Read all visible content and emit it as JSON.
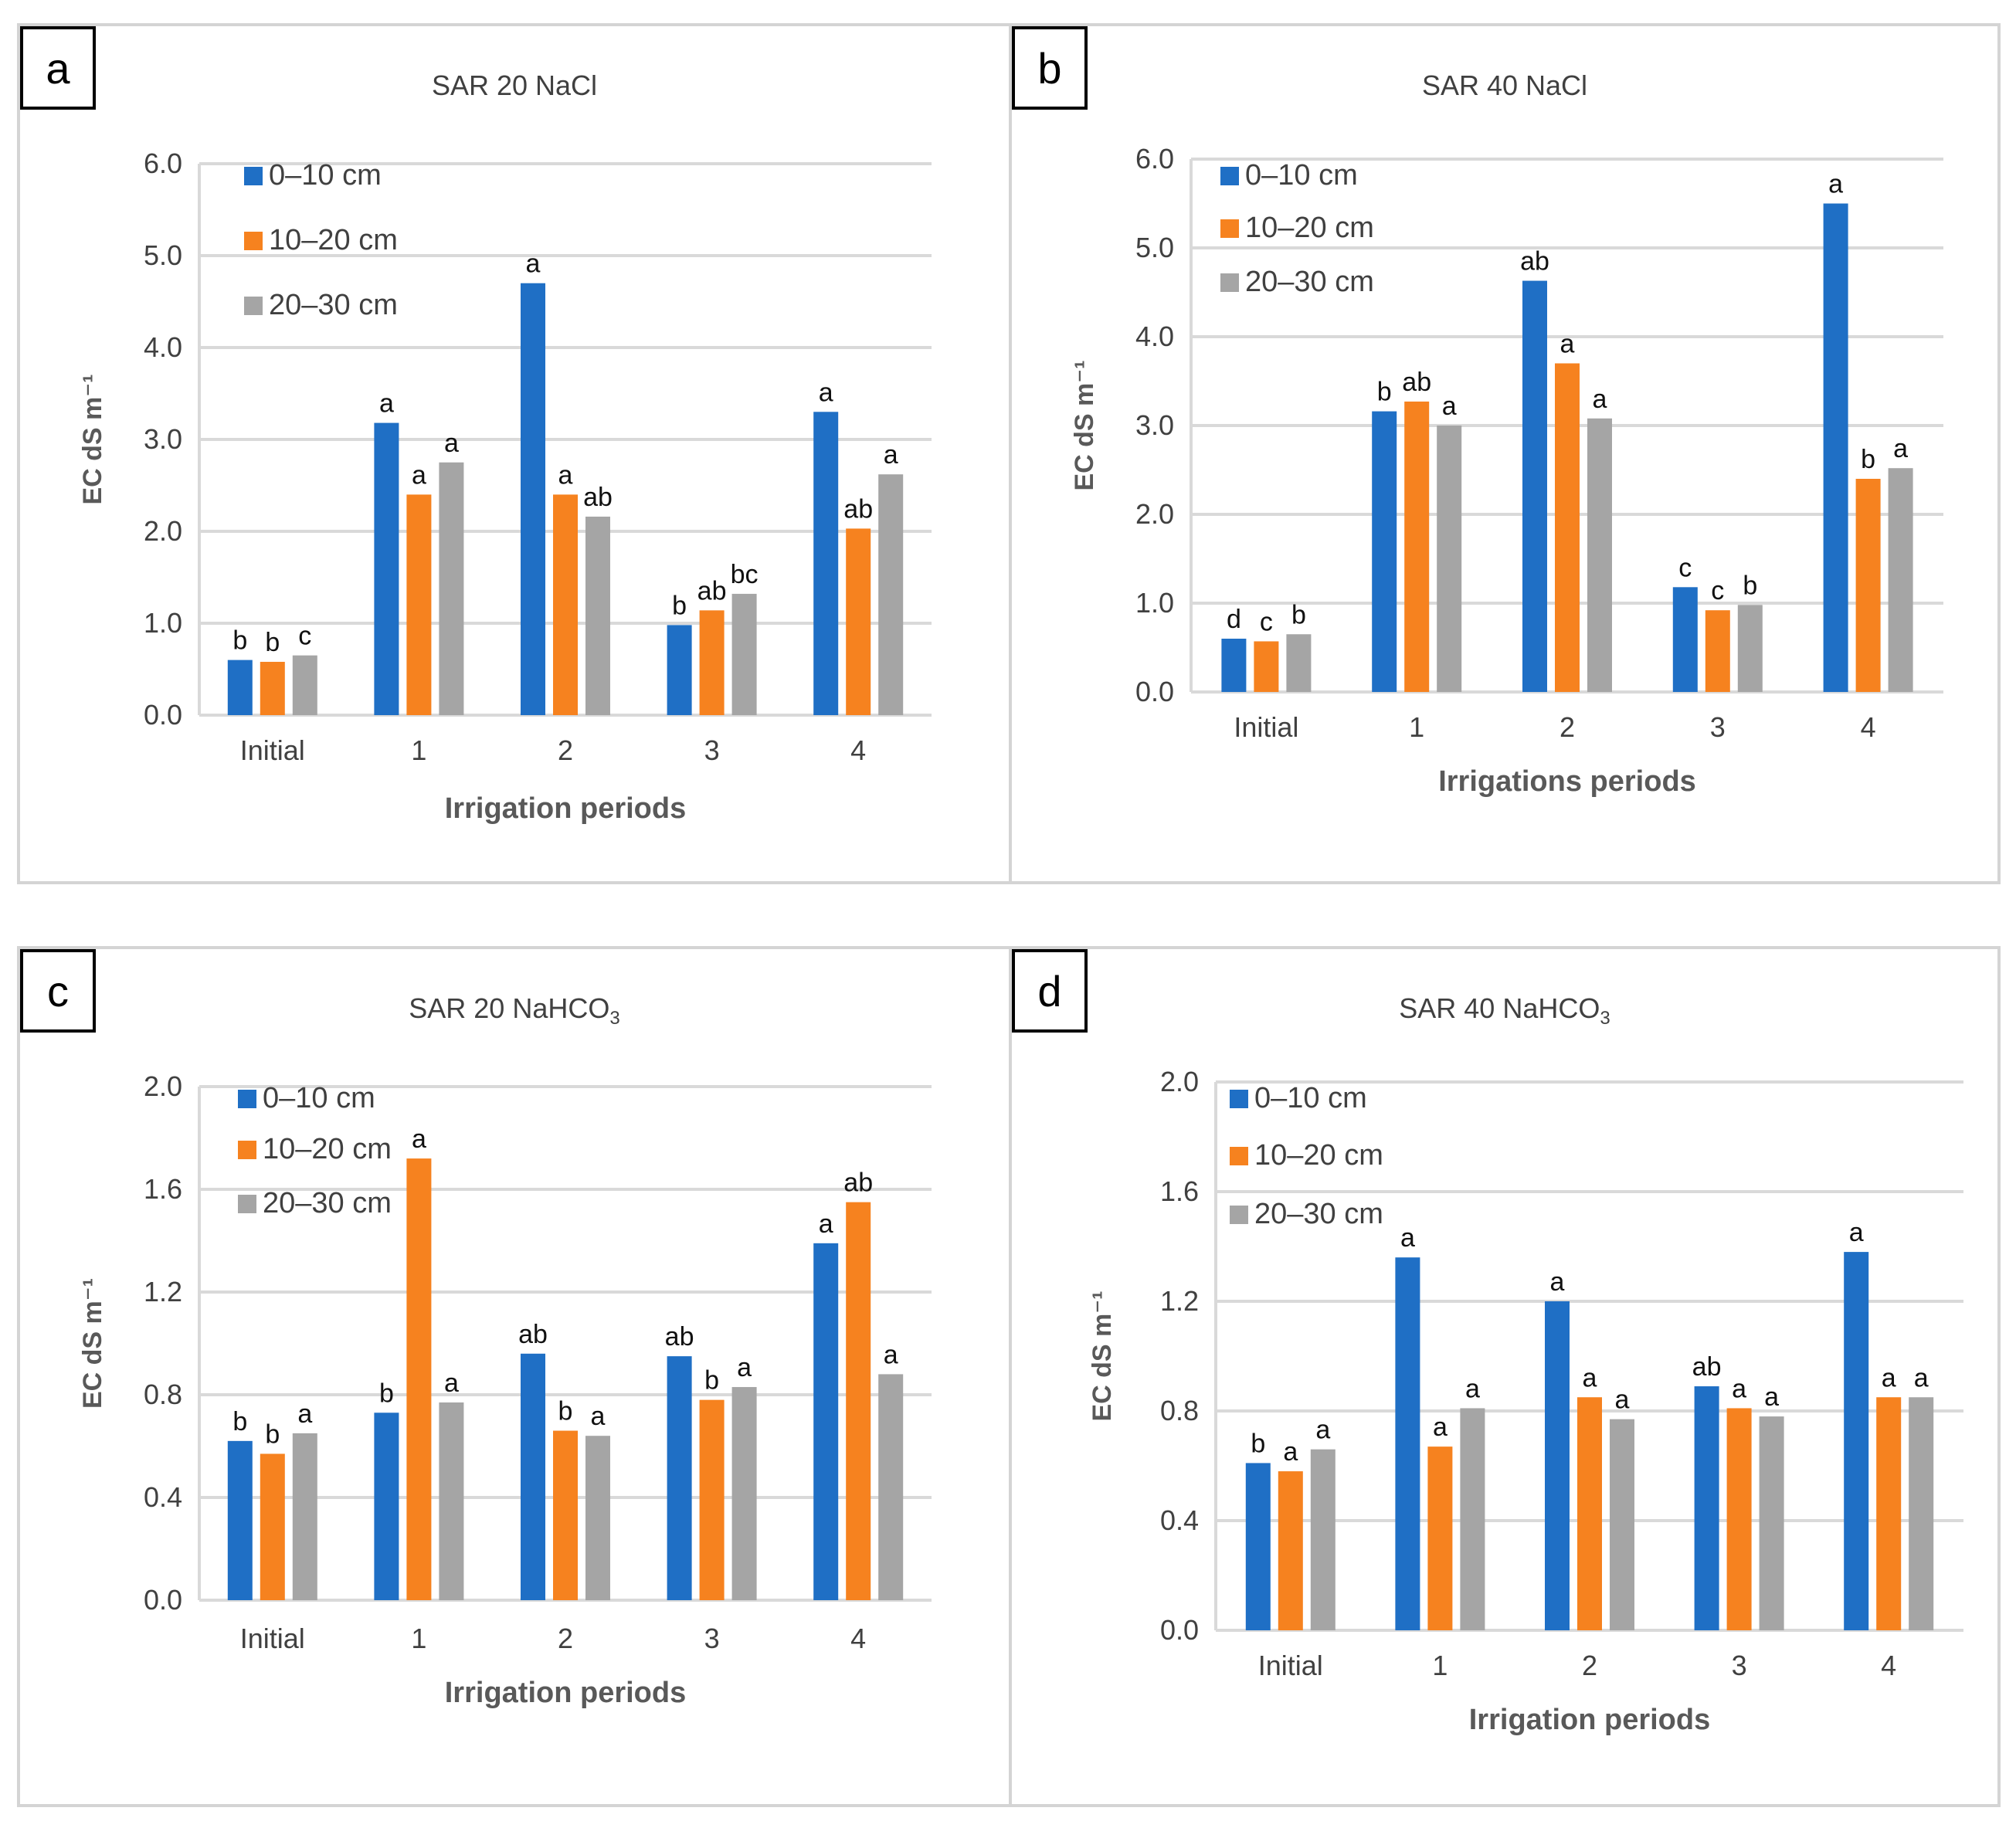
{
  "colors": {
    "series": [
      "#1f6fc5",
      "#f6821f",
      "#a5a5a5"
    ],
    "grid": "#d9d9d9",
    "axis_text": "#404040",
    "letter_text": "#000000"
  },
  "chart_data": [
    {
      "panel_label": "a",
      "type": "bar",
      "title": "SAR 20 NaCl",
      "xlabel": "Irrigation periods",
      "ylabel": "EC dS m⁻¹",
      "ylim": [
        0,
        6
      ],
      "ytick_values": [
        0,
        1,
        2,
        3,
        4,
        5,
        6
      ],
      "ytick_labels": [
        "0.0",
        "1.0",
        "2.0",
        "3.0",
        "4.0",
        "5.0",
        "6.0"
      ],
      "categories": [
        "Initial",
        "1",
        "2",
        "3",
        "4"
      ],
      "legend_position": "top-left",
      "series": [
        {
          "name": "0–10 cm",
          "values": [
            0.6,
            3.18,
            4.7,
            0.98,
            3.3
          ],
          "letters": [
            "b",
            "a",
            "a",
            "b",
            "a"
          ]
        },
        {
          "name": "10–20 cm",
          "values": [
            0.58,
            2.4,
            2.4,
            1.14,
            2.03
          ],
          "letters": [
            "b",
            "a",
            "a",
            "ab",
            "ab"
          ]
        },
        {
          "name": "20–30 cm",
          "values": [
            0.65,
            2.75,
            2.16,
            1.32,
            2.62
          ],
          "letters": [
            "c",
            "a",
            "ab",
            "bc",
            "a"
          ]
        }
      ]
    },
    {
      "panel_label": "b",
      "type": "bar",
      "title": "SAR 40 NaCl",
      "xlabel": "Irrigations periods",
      "ylabel": "EC dS m⁻¹",
      "ylim": [
        0,
        6
      ],
      "ytick_values": [
        0,
        1,
        2,
        3,
        4,
        5,
        6
      ],
      "ytick_labels": [
        "0.0",
        "1.0",
        "2.0",
        "3.0",
        "4.0",
        "5.0",
        "6.0"
      ],
      "categories": [
        "Initial",
        "1",
        "2",
        "3",
        "4"
      ],
      "legend_position": "top-left",
      "series": [
        {
          "name": "0–10 cm",
          "values": [
            0.6,
            3.16,
            4.63,
            1.18,
            5.5
          ],
          "letters": [
            "d",
            "b",
            "ab",
            "c",
            "a"
          ]
        },
        {
          "name": "10–20 cm",
          "values": [
            0.57,
            3.27,
            3.7,
            0.92,
            2.4
          ],
          "letters": [
            "c",
            "ab",
            "a",
            "c",
            "b"
          ]
        },
        {
          "name": "20–30 cm",
          "values": [
            0.65,
            3.0,
            3.08,
            0.98,
            2.52
          ],
          "letters": [
            "b",
            "a",
            "a",
            "b",
            "a"
          ]
        }
      ]
    },
    {
      "panel_label": "c",
      "type": "bar",
      "title": "SAR 20 NaHCO",
      "title_subscript": "3",
      "xlabel": "Irrigation periods",
      "ylabel": "EC dS m⁻¹",
      "ylim": [
        0,
        2
      ],
      "ytick_values": [
        0,
        0.4,
        0.8,
        1.2,
        1.6,
        2.0
      ],
      "ytick_labels": [
        "0.0",
        "0.4",
        "0.8",
        "1.2",
        "1.6",
        "2.0"
      ],
      "categories": [
        "Initial",
        "1",
        "2",
        "3",
        "4"
      ],
      "legend_position": "top-left",
      "series": [
        {
          "name": "0–10 cm",
          "values": [
            0.62,
            0.73,
            0.96,
            0.95,
            1.39
          ],
          "letters": [
            "b",
            "b",
            "ab",
            "ab",
            "a"
          ]
        },
        {
          "name": "10–20 cm",
          "values": [
            0.57,
            1.72,
            0.66,
            0.78,
            1.55
          ],
          "letters": [
            "b",
            "a",
            "b",
            "b",
            "ab"
          ]
        },
        {
          "name": "20–30 cm",
          "values": [
            0.65,
            0.77,
            0.64,
            0.83,
            0.88
          ],
          "letters": [
            "a",
            "a",
            "a",
            "a",
            "a"
          ]
        }
      ]
    },
    {
      "panel_label": "d",
      "type": "bar",
      "title": "SAR 40 NaHCO",
      "title_subscript": "3",
      "xlabel": "Irrigation periods",
      "ylabel": "EC dS m⁻¹",
      "ylim": [
        0,
        2
      ],
      "ytick_values": [
        0,
        0.4,
        0.8,
        1.2,
        1.6,
        2.0
      ],
      "ytick_labels": [
        "0.0",
        "0.4",
        "0.8",
        "1.2",
        "1.6",
        "2.0"
      ],
      "categories": [
        "Initial",
        "1",
        "2",
        "3",
        "4"
      ],
      "legend_position": "top-left",
      "series": [
        {
          "name": "0–10 cm",
          "values": [
            0.61,
            1.36,
            1.2,
            0.89,
            1.38
          ],
          "letters": [
            "b",
            "a",
            "a",
            "ab",
            "a"
          ]
        },
        {
          "name": "10–20 cm",
          "values": [
            0.58,
            0.67,
            0.85,
            0.81,
            0.85
          ],
          "letters": [
            "a",
            "a",
            "a",
            "a",
            "a"
          ]
        },
        {
          "name": "20–30 cm",
          "values": [
            0.66,
            0.81,
            0.77,
            0.78,
            0.85
          ],
          "letters": [
            "a",
            "a",
            "a",
            "a",
            "a"
          ]
        }
      ]
    }
  ]
}
